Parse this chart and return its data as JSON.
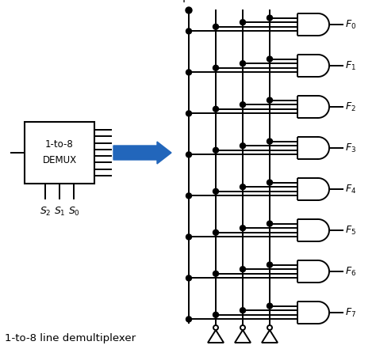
{
  "title": "1-to-8 line demultiplexer",
  "bg_color": "#ffffff",
  "line_color": "#000000",
  "arrow_color": "#2266bb",
  "gate_outputs": [
    "F_0",
    "F_1",
    "F_2",
    "F_3",
    "F_4",
    "F_5",
    "F_6",
    "F_7"
  ],
  "select_labels": [
    "S_2",
    "S_1",
    "S_0"
  ],
  "demux_label1": "1-to-8",
  "demux_label2": "DEMUX",
  "fig_w": 4.74,
  "fig_h": 4.41,
  "dpi": 100
}
